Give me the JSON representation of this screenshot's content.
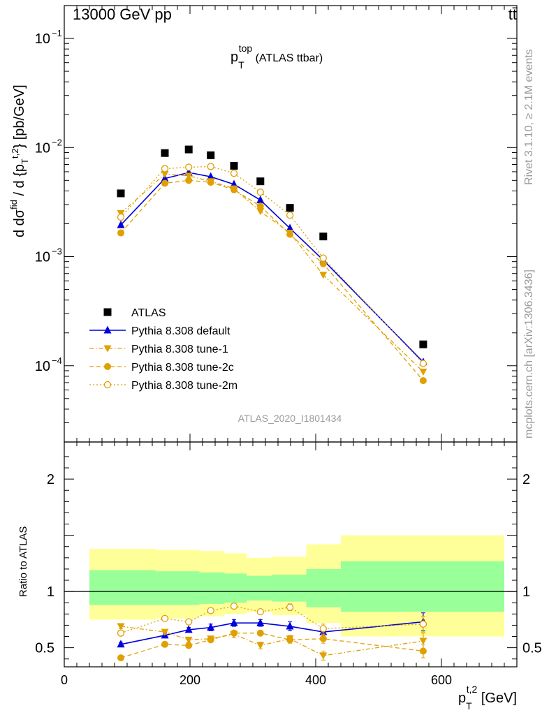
{
  "header": {
    "energy": "13000 GeV pp",
    "process": "tt̄",
    "analysis_id": "ATLAS_2020_I1801434",
    "side_rivet": "Rivet 3.1.10, ≥ 2.1M events",
    "side_site": "mcplots.cern.ch [arXiv:1306.3436]"
  },
  "chart_data": [
    {
      "type": "scatter",
      "panel": "main",
      "title": {
        "main": "p",
        "sub": "T",
        "sup": "top",
        "rest": " (ATLAS ttbar)"
      },
      "ylabel": "d dσ^{fid} / d {p_T^{t,2}} [pb/GeV]",
      "yscale": "log",
      "ylim": [
        2e-05,
        0.2
      ],
      "yticks": [
        {
          "value": 0.1,
          "label": "10",
          "exp": "−1"
        },
        {
          "value": 0.01,
          "label": "10",
          "exp": "−2"
        },
        {
          "value": 0.001,
          "label": "10",
          "exp": "−3"
        },
        {
          "value": 0.0001,
          "label": "10",
          "exp": "−4"
        }
      ],
      "x": [
        90,
        160,
        198,
        233,
        270,
        312,
        359,
        412,
        571
      ],
      "series": [
        {
          "name": "ATLAS",
          "color": "#000000",
          "marker": "square",
          "style": "none",
          "values": [
            0.0038,
            0.0089,
            0.0096,
            0.0085,
            0.0068,
            0.0049,
            0.0028,
            0.00153,
            0.000157
          ]
        },
        {
          "name": "Pythia 8.308 default",
          "color": "#0000dd",
          "marker": "triangle-up",
          "style": "solid",
          "values": [
            0.00195,
            0.0052,
            0.0059,
            0.0054,
            0.0046,
            0.0033,
            0.00182,
            0.00093,
            0.000108
          ]
        },
        {
          "name": "Pythia 8.308 tune-1",
          "color": "#e0a000",
          "marker": "triangle-down",
          "style": "dashdot",
          "values": [
            0.0025,
            0.0057,
            0.0055,
            0.0049,
            0.0042,
            0.0026,
            0.00165,
            0.00068,
            8.8e-05
          ]
        },
        {
          "name": "Pythia 8.308 tune-2c",
          "color": "#e0a000",
          "marker": "circle",
          "style": "dashed",
          "values": [
            0.00165,
            0.0047,
            0.005,
            0.0048,
            0.0041,
            0.0029,
            0.0016,
            0.00086,
            7.3e-05
          ]
        },
        {
          "name": "Pythia 8.308 tune-2m",
          "color": "#e0a000",
          "marker": "open-circle",
          "style": "dotted",
          "values": [
            0.0023,
            0.0064,
            0.0066,
            0.0067,
            0.0058,
            0.0039,
            0.0024,
            0.00097,
            0.000105
          ]
        }
      ]
    },
    {
      "type": "scatter",
      "panel": "ratio",
      "ylabel": "Ratio to ATLAS",
      "xlabel": {
        "main": "p",
        "sub": "T",
        "sup": "t,2",
        "rest": " [GeV]"
      },
      "xlim": [
        0,
        720
      ],
      "ylim": [
        0.33,
        2.33
      ],
      "xticks": [
        0,
        200,
        400,
        600
      ],
      "yticks": [
        0.5,
        1,
        2
      ],
      "bands": [
        {
          "xlo": 40,
          "xhi": 145,
          "green": [
            0.88,
            1.19
          ],
          "yellow": [
            0.75,
            1.38
          ]
        },
        {
          "xlo": 145,
          "xhi": 215,
          "green": [
            0.88,
            1.18
          ],
          "yellow": [
            0.76,
            1.37
          ]
        },
        {
          "xlo": 215,
          "xhi": 255,
          "green": [
            0.89,
            1.17
          ],
          "yellow": [
            0.78,
            1.36
          ]
        },
        {
          "xlo": 255,
          "xhi": 290,
          "green": [
            0.9,
            1.16
          ],
          "yellow": [
            0.8,
            1.34
          ]
        },
        {
          "xlo": 290,
          "xhi": 330,
          "green": [
            0.92,
            1.14
          ],
          "yellow": [
            0.82,
            1.3
          ]
        },
        {
          "xlo": 330,
          "xhi": 385,
          "green": [
            0.91,
            1.15
          ],
          "yellow": [
            0.79,
            1.31
          ]
        },
        {
          "xlo": 385,
          "xhi": 440,
          "green": [
            0.86,
            1.2
          ],
          "yellow": [
            0.72,
            1.42
          ]
        },
        {
          "xlo": 440,
          "xhi": 700,
          "green": [
            0.82,
            1.27
          ],
          "yellow": [
            0.6,
            1.5
          ]
        }
      ],
      "reference": 1,
      "x": [
        90,
        160,
        198,
        233,
        270,
        312,
        359,
        412,
        571
      ],
      "series": [
        {
          "name": "Pythia 8.308 default",
          "color": "#0000dd",
          "marker": "triangle-up",
          "style": "solid",
          "values": [
            0.53,
            0.61,
            0.66,
            0.68,
            0.72,
            0.72,
            0.69,
            0.64,
            0.73
          ],
          "errors": [
            0.02,
            0.02,
            0.02,
            0.03,
            0.03,
            0.03,
            0.04,
            0.04,
            0.08
          ]
        },
        {
          "name": "Pythia 8.308 tune-1",
          "color": "#e0a000",
          "marker": "triangle-down",
          "style": "dashdot",
          "values": [
            0.69,
            0.64,
            0.57,
            0.58,
            0.62,
            0.52,
            0.58,
            0.43,
            0.56
          ],
          "errors": [
            0.02,
            0.02,
            0.02,
            0.02,
            0.03,
            0.03,
            0.03,
            0.04,
            0.07
          ]
        },
        {
          "name": "Pythia 8.308 tune-2c",
          "color": "#e0a000",
          "marker": "circle",
          "style": "dashed",
          "values": [
            0.41,
            0.53,
            0.52,
            0.57,
            0.63,
            0.63,
            0.57,
            0.58,
            0.47
          ],
          "errors": [
            0.02,
            0.02,
            0.02,
            0.02,
            0.02,
            0.02,
            0.03,
            0.04,
            0.06
          ]
        },
        {
          "name": "Pythia 8.308 tune-2m",
          "color": "#e0a000",
          "marker": "open-circle",
          "style": "dotted",
          "values": [
            0.63,
            0.76,
            0.73,
            0.83,
            0.87,
            0.82,
            0.86,
            0.67,
            0.71
          ],
          "errors": [
            0.02,
            0.02,
            0.02,
            0.02,
            0.02,
            0.02,
            0.03,
            0.04,
            0.07
          ]
        }
      ]
    }
  ]
}
